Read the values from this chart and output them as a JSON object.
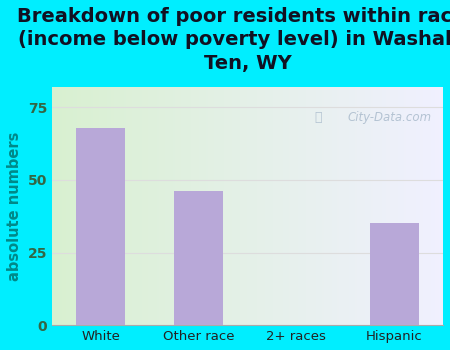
{
  "title": "Breakdown of poor residents within races\n(income below poverty level) in Washakie\nTen, WY",
  "categories": [
    "White",
    "Other race",
    "2+ races",
    "Hispanic"
  ],
  "values": [
    68,
    46,
    0,
    35
  ],
  "bar_color": "#b8a8d8",
  "ylabel": "absolute numbers",
  "ylim": [
    0,
    82
  ],
  "yticks": [
    0,
    25,
    50,
    75
  ],
  "bg_color": "#00eeff",
  "plot_bg_left": "#d8f0d0",
  "plot_bg_right": "#f0f0ff",
  "watermark": "City-Data.com",
  "title_fontsize": 14,
  "title_color": "#111122",
  "ylabel_color": "#008888",
  "tick_color": "#336644",
  "grid_color": "#dddddd"
}
